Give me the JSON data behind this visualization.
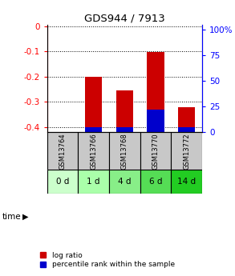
{
  "title": "GDS944 / 7913",
  "samples": [
    "GSM13764",
    "GSM13766",
    "GSM13768",
    "GSM13770",
    "GSM13772"
  ],
  "time_labels": [
    "0 d",
    "1 d",
    "4 d",
    "6 d",
    "14 d"
  ],
  "log_ratios": [
    0.0,
    -0.2,
    -0.255,
    -0.103,
    -0.32
  ],
  "percentile_ranks": [
    0.0,
    5.0,
    5.0,
    22.0,
    5.0
  ],
  "bar_width": 0.55,
  "ylim_left": [
    -0.42,
    0.005
  ],
  "ylim_right": [
    0,
    105
  ],
  "left_ticks": [
    0,
    -0.1,
    -0.2,
    -0.3,
    -0.4
  ],
  "right_ticks": [
    0,
    25,
    50,
    75,
    100
  ],
  "right_tick_labels": [
    "0",
    "25",
    "50",
    "75",
    "100%"
  ],
  "bar_color_red": "#CC0000",
  "bar_color_blue": "#0000CC",
  "grid_color": "#000000",
  "sample_bg_color": "#C8C8C8",
  "time_bg_colors": [
    "#CCFFCC",
    "#AAFFAA",
    "#88EE88",
    "#55DD55",
    "#22CC22"
  ],
  "legend_red_label": "log ratio",
  "legend_blue_label": "percentile rank within the sample",
  "time_label": "time"
}
